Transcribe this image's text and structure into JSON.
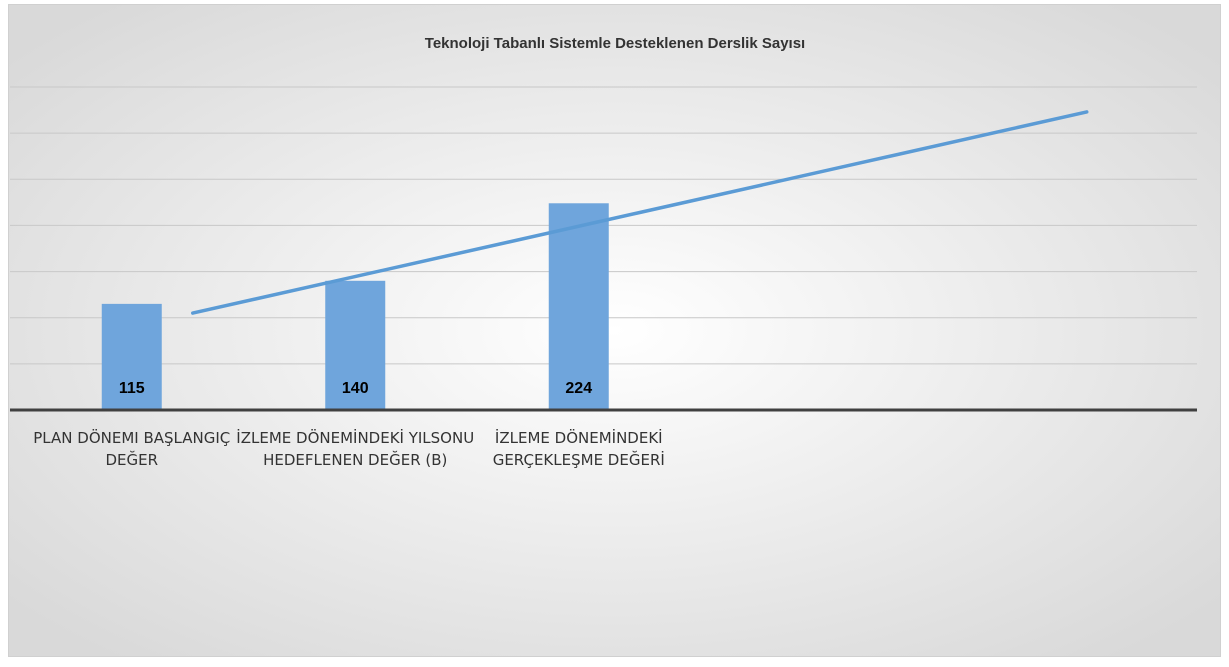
{
  "chart_data": {
    "type": "bar",
    "title": "Teknoloji Tabanlı Sistemle Desteklenen Derslik Sayısı",
    "categories": [
      "PLAN DÖNEMI BAŞLANGIÇ DEĞER",
      "İZLEME DÖNEMİNDEKİ YILSONU HEDEFLENEN DEĞER (B)",
      "İZLEME DÖNEMİNDEKİ GERÇEKLEŞME DEĞERİ",
      null,
      null
    ],
    "values": [
      115,
      140,
      224,
      null,
      null
    ],
    "color": "#6fa5dc",
    "trendline": {
      "color": "#5b9bd5",
      "values": [
        105,
        159.5,
        214,
        268.5,
        323
      ]
    },
    "ylim": [
      0,
      350
    ],
    "yticks": [
      0,
      50,
      100,
      150,
      200,
      250,
      300,
      350
    ],
    "grid": true
  }
}
